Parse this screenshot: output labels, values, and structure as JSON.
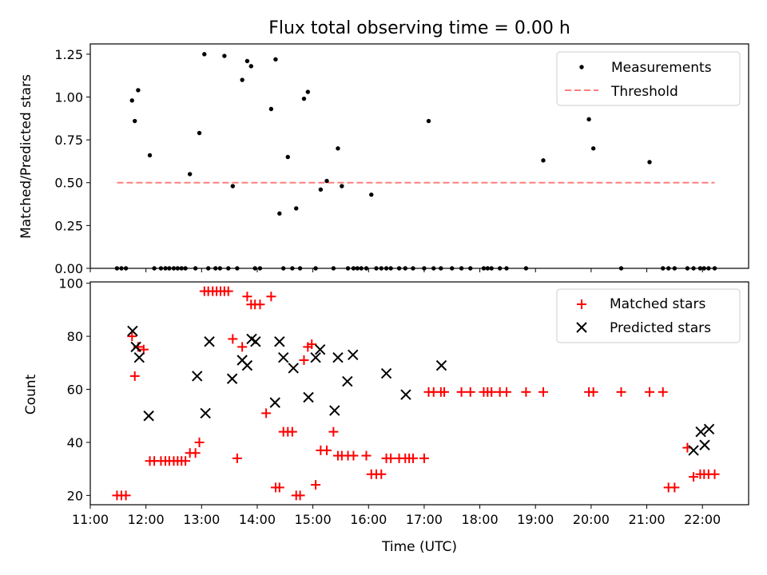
{
  "chart_data": [
    {
      "type": "scatter",
      "title": "Flux total observing time = 0.00 h",
      "xlabel": "",
      "ylabel": "Matched/Predicted stars",
      "xlim": [
        11.0,
        22.83
      ],
      "ylim": [
        0,
        1.31
      ],
      "yticks": [
        0,
        0.25,
        0.5,
        0.75,
        1.0,
        1.25
      ],
      "ytick_labels": [
        "0.00",
        "0.25",
        "0.50",
        "0.75",
        "1.00",
        "1.25"
      ],
      "xticks": [
        11,
        12,
        13,
        14,
        15,
        16,
        17,
        18,
        19,
        20,
        21,
        22
      ],
      "xtick_labels_visible": false,
      "legend_position": "top-right",
      "colors": {
        "measurements": "#000000",
        "threshold": "#ff7f7f"
      },
      "series": [
        {
          "name": "Measurements",
          "marker": "dot",
          "x": [
            11.48,
            11.56,
            11.64,
            11.75,
            11.8,
            11.86,
            12.07,
            12.15,
            12.27,
            12.35,
            12.42,
            12.5,
            12.57,
            12.64,
            12.71,
            12.79,
            12.89,
            12.96,
            13.05,
            13.12,
            13.25,
            13.33,
            13.41,
            13.48,
            13.56,
            13.64,
            13.73,
            13.82,
            13.89,
            13.96,
            14.05,
            14.25,
            14.33,
            14.4,
            14.47,
            14.55,
            14.63,
            14.7,
            14.77,
            14.84,
            14.91,
            15.05,
            15.14,
            15.25,
            15.37,
            15.45,
            15.52,
            15.63,
            15.73,
            15.8,
            15.87,
            15.96,
            16.05,
            16.14,
            16.23,
            16.32,
            16.4,
            16.55,
            16.66,
            16.8,
            17.0,
            17.08,
            17.17,
            17.3,
            17.5,
            17.67,
            17.83,
            18.07,
            18.14,
            18.21,
            18.36,
            18.48,
            18.83,
            19.14,
            19.96,
            20.04,
            20.54,
            21.05,
            21.29,
            21.39,
            21.5,
            21.73,
            21.84,
            21.96,
            22.03,
            22.11,
            22.22
          ],
          "y": [
            0,
            0,
            0,
            0.98,
            0.86,
            1.04,
            0.66,
            0,
            0,
            0,
            0,
            0,
            0,
            0,
            0,
            0.55,
            0,
            0.79,
            1.25,
            0,
            0,
            0,
            1.24,
            0,
            0.48,
            0,
            1.1,
            1.21,
            1.18,
            0,
            0,
            0.93,
            1.22,
            0.32,
            0,
            0.65,
            0,
            0.35,
            0,
            0.99,
            1.03,
            0,
            0.46,
            0.51,
            0,
            0.7,
            0.48,
            0,
            0,
            0,
            0,
            0,
            0.43,
            0,
            0,
            0,
            0,
            0,
            0,
            0,
            0,
            0.86,
            0,
            0,
            0,
            0,
            0,
            0,
            0,
            0,
            0,
            0,
            0,
            0.63,
            0.87,
            0.7,
            0,
            0.62,
            0,
            0,
            0,
            0,
            0,
            0,
            0,
            0,
            0
          ]
        },
        {
          "name": "Threshold",
          "marker": "dashed-line",
          "x": [
            11.48,
            22.22
          ],
          "y": [
            0.5,
            0.5
          ]
        }
      ]
    },
    {
      "type": "scatter",
      "title": "",
      "xlabel": "Time (UTC)",
      "ylabel": "Count",
      "xlim": [
        11.0,
        22.83
      ],
      "ylim": [
        16.5,
        100.5
      ],
      "yticks": [
        20,
        40,
        60,
        80,
        100
      ],
      "ytick_labels": [
        "20",
        "40",
        "60",
        "80",
        "100"
      ],
      "xticks": [
        11,
        12,
        13,
        14,
        15,
        16,
        17,
        18,
        19,
        20,
        21,
        22
      ],
      "xtick_labels": [
        "11:00",
        "12:00",
        "13:00",
        "14:00",
        "15:00",
        "16:00",
        "17:00",
        "18:00",
        "19:00",
        "20:00",
        "21:00",
        "22:00"
      ],
      "legend_position": "top-right",
      "colors": {
        "matched": "#ff0000",
        "predicted": "#000000"
      },
      "series": [
        {
          "name": "Matched stars",
          "marker": "plus",
          "x": [
            11.48,
            11.56,
            11.64,
            11.75,
            11.8,
            11.86,
            11.96,
            12.07,
            12.15,
            12.27,
            12.35,
            12.42,
            12.5,
            12.57,
            12.64,
            12.71,
            12.79,
            12.89,
            12.96,
            13.05,
            13.12,
            13.2,
            13.27,
            13.34,
            13.41,
            13.48,
            13.56,
            13.64,
            13.73,
            13.82,
            13.89,
            13.96,
            14.05,
            14.16,
            14.25,
            14.33,
            14.4,
            14.47,
            14.55,
            14.63,
            14.7,
            14.77,
            14.84,
            14.91,
            14.98,
            15.05,
            15.14,
            15.25,
            15.37,
            15.45,
            15.52,
            15.63,
            15.73,
            15.96,
            16.05,
            16.14,
            16.23,
            16.32,
            16.4,
            16.55,
            16.66,
            16.8,
            16.73,
            17.0,
            17.08,
            17.17,
            17.3,
            17.36,
            17.67,
            17.83,
            18.07,
            18.14,
            18.21,
            18.36,
            18.48,
            18.83,
            19.14,
            19.96,
            20.04,
            20.54,
            21.05,
            21.29,
            21.39,
            21.5,
            21.73,
            21.84,
            21.96,
            22.03,
            22.11,
            22.22
          ],
          "y": [
            20,
            20,
            20,
            80,
            65,
            76,
            75,
            33,
            33,
            33,
            33,
            33,
            33,
            33,
            33,
            33,
            36,
            36,
            40,
            97,
            97,
            97,
            97,
            97,
            97,
            97,
            79,
            34,
            76,
            95,
            92,
            92,
            92,
            51,
            95,
            23,
            23,
            44,
            44,
            44,
            20,
            20,
            71,
            76,
            77,
            24,
            37,
            37,
            44,
            35,
            35,
            35,
            35,
            35,
            28,
            28,
            28,
            34,
            34,
            34,
            34,
            34,
            34,
            34,
            59,
            59,
            59,
            59,
            59,
            59,
            59,
            59,
            59,
            59,
            59,
            59,
            59,
            59,
            59,
            59,
            59,
            59,
            23,
            23,
            38,
            27,
            28,
            28,
            28,
            28
          ],
          "note_order": "matched-marker-sequence"
        },
        {
          "name": "Predicted stars",
          "marker": "x",
          "x": [
            11.76,
            11.82,
            11.88,
            12.05,
            12.92,
            13.07,
            13.14,
            13.55,
            13.73,
            13.82,
            13.9,
            13.97,
            14.32,
            14.4,
            14.47,
            14.65,
            14.92,
            15.05,
            15.13,
            15.39,
            15.45,
            15.62,
            15.72,
            16.32,
            16.67,
            17.31,
            21.84,
            21.97,
            22.04,
            22.12
          ],
          "y": [
            82,
            76,
            72,
            50,
            65,
            51,
            78,
            64,
            71,
            69,
            79,
            78,
            55,
            78,
            72,
            68,
            57,
            72,
            75,
            52,
            72,
            63,
            73,
            66,
            58,
            69,
            37,
            44,
            39,
            45
          ]
        }
      ]
    }
  ]
}
